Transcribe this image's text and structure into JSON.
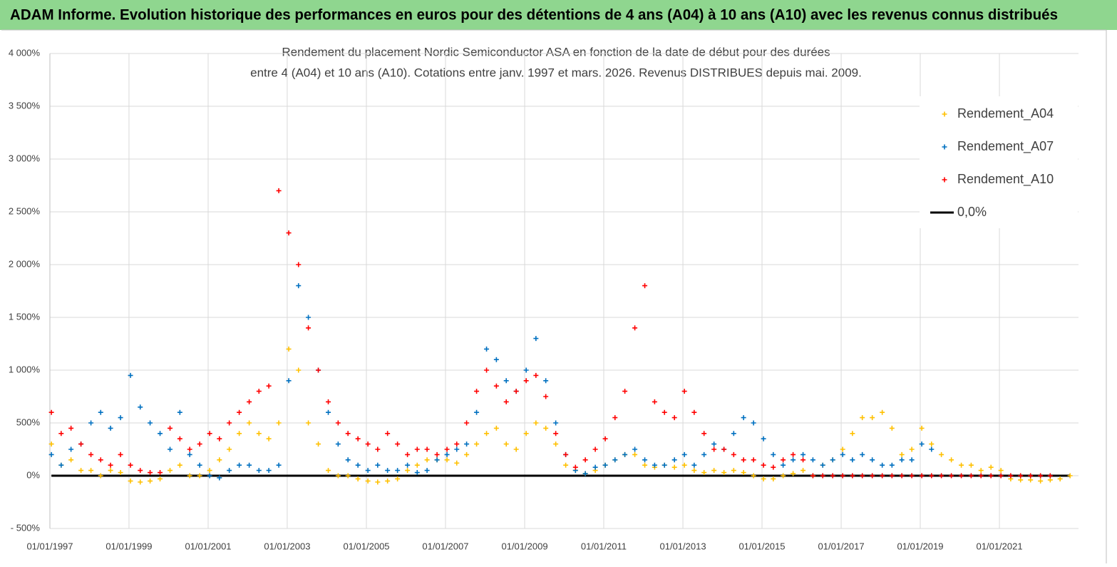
{
  "header": {
    "title": "ADAM Informe. Evolution historique des performances en euros pour des détentions de 4 ans (A04) à 10 ans (A10) avec les revenus connus distribués"
  },
  "chart_data": {
    "type": "scatter",
    "title": [
      "Rendement du placement Nordic Semiconductor ASA en fonction de la date de début pour des durées",
      "entre 4 (A04) et 10 ans (A10). Cotations entre janv. 1997 et mars. 2026. Revenus DISTRIBUES depuis mai. 2009."
    ],
    "x": [
      "1997-01-15",
      "1997-04-15",
      "1997-07-15",
      "1997-10-15",
      "1998-01-15",
      "1998-04-15",
      "1998-07-15",
      "1998-10-15",
      "1999-01-15",
      "1999-04-15",
      "1999-07-15",
      "1999-10-15",
      "2000-01-15",
      "2000-04-15",
      "2000-07-15",
      "2000-10-15",
      "2001-01-15",
      "2001-04-15",
      "2001-07-15",
      "2001-10-15",
      "2002-01-15",
      "2002-04-15",
      "2002-07-15",
      "2002-10-15",
      "2003-01-15",
      "2003-04-15",
      "2003-07-15",
      "2003-10-15",
      "2004-01-15",
      "2004-04-15",
      "2004-07-15",
      "2004-10-15",
      "2005-01-15",
      "2005-04-15",
      "2005-07-15",
      "2005-10-15",
      "2006-01-15",
      "2006-04-15",
      "2006-07-15",
      "2006-10-15",
      "2007-01-15",
      "2007-04-15",
      "2007-07-15",
      "2007-10-15",
      "2008-01-15",
      "2008-04-15",
      "2008-07-15",
      "2008-10-15",
      "2009-01-15",
      "2009-04-15",
      "2009-07-15",
      "2009-10-15",
      "2010-01-15",
      "2010-04-15",
      "2010-07-15",
      "2010-10-15",
      "2011-01-15",
      "2011-04-15",
      "2011-07-15",
      "2011-10-15",
      "2012-01-15",
      "2012-04-15",
      "2012-07-15",
      "2012-10-15",
      "2013-01-15",
      "2013-04-15",
      "2013-07-15",
      "2013-10-15",
      "2014-01-15",
      "2014-04-15",
      "2014-07-15",
      "2014-10-15",
      "2015-01-15",
      "2015-04-15",
      "2015-07-15",
      "2015-10-15",
      "2016-01-15",
      "2016-04-15",
      "2016-07-15",
      "2016-10-15",
      "2017-01-15",
      "2017-04-15",
      "2017-07-15",
      "2017-10-15",
      "2018-01-15",
      "2018-04-15",
      "2018-07-15",
      "2018-10-15",
      "2019-01-15",
      "2019-04-15",
      "2019-07-15",
      "2019-10-15",
      "2020-01-15",
      "2020-04-15",
      "2020-07-15",
      "2020-10-15",
      "2021-01-15",
      "2021-04-15",
      "2021-07-15",
      "2021-10-15",
      "2022-01-15",
      "2022-04-15",
      "2022-07-15",
      "2022-10-15"
    ],
    "series": [
      {
        "name": "Rendement_A04",
        "color": "#ffc000",
        "style": "marker",
        "values": [
          300,
          100,
          150,
          50,
          50,
          0,
          50,
          30,
          -50,
          -60,
          -50,
          -30,
          50,
          100,
          0,
          0,
          50,
          150,
          250,
          400,
          500,
          400,
          350,
          500,
          1200,
          1000,
          500,
          300,
          50,
          0,
          0,
          -30,
          -50,
          -60,
          -50,
          -30,
          50,
          100,
          150,
          150,
          150,
          120,
          200,
          300,
          400,
          450,
          300,
          250,
          400,
          500,
          450,
          300,
          100,
          50,
          20,
          50,
          100,
          150,
          200,
          200,
          100,
          80,
          100,
          80,
          100,
          50,
          30,
          50,
          30,
          50,
          30,
          0,
          -30,
          -30,
          0,
          20,
          50,
          0,
          100,
          150,
          250,
          400,
          550,
          550,
          600,
          450,
          200,
          250,
          450,
          300,
          200,
          150,
          100,
          100,
          50,
          80,
          50,
          -30,
          -40,
          -40,
          -50,
          -40,
          -30,
          0
        ]
      },
      {
        "name": "Rendement_A07",
        "color": "#0070c0",
        "style": "marker",
        "values": [
          200,
          100,
          250,
          300,
          500,
          600,
          450,
          550,
          950,
          650,
          500,
          400,
          250,
          600,
          200,
          100,
          0,
          -20,
          50,
          100,
          100,
          50,
          50,
          100,
          900,
          1800,
          1500,
          1000,
          600,
          300,
          150,
          100,
          50,
          100,
          50,
          50,
          100,
          30,
          50,
          150,
          200,
          250,
          300,
          600,
          1200,
          1100,
          900,
          800,
          1000,
          1300,
          900,
          500,
          200,
          50,
          20,
          80,
          100,
          150,
          200,
          250,
          150,
          100,
          100,
          150,
          200,
          100,
          200,
          300,
          250,
          400,
          550,
          500,
          350,
          200,
          100,
          150,
          200,
          150,
          100,
          150,
          200,
          150,
          200,
          150,
          100,
          100,
          150,
          150,
          300,
          250,
          null,
          null,
          null,
          null,
          null,
          null,
          null,
          null,
          null,
          null,
          null,
          null,
          null,
          null
        ]
      },
      {
        "name": "Rendement_A10",
        "color": "#ff0000",
        "style": "marker",
        "values": [
          600,
          400,
          450,
          300,
          200,
          150,
          100,
          200,
          100,
          50,
          30,
          30,
          450,
          350,
          250,
          300,
          400,
          350,
          500,
          600,
          700,
          800,
          850,
          2700,
          2300,
          2000,
          1400,
          1000,
          700,
          500,
          400,
          350,
          300,
          250,
          400,
          300,
          200,
          250,
          250,
          200,
          250,
          300,
          500,
          800,
          1000,
          850,
          700,
          800,
          900,
          950,
          750,
          400,
          200,
          80,
          150,
          250,
          350,
          550,
          800,
          1400,
          1800,
          700,
          600,
          550,
          800,
          600,
          400,
          250,
          250,
          200,
          150,
          150,
          100,
          80,
          150,
          200,
          150,
          0,
          0,
          0,
          0,
          0,
          0,
          0,
          0,
          0,
          0,
          0,
          0,
          0,
          0,
          0,
          0,
          0,
          0,
          0,
          0,
          0,
          0,
          0,
          0,
          0
        ]
      },
      {
        "name": "0,0%",
        "color": "#000000",
        "style": "line",
        "values": [
          0,
          0,
          0,
          0,
          0,
          0,
          0,
          0,
          0,
          0,
          0,
          0,
          0,
          0,
          0,
          0,
          0,
          0,
          0,
          0,
          0,
          0,
          0,
          0,
          0,
          0,
          0,
          0,
          0,
          0,
          0,
          0,
          0,
          0,
          0,
          0,
          0,
          0,
          0,
          0,
          0,
          0,
          0,
          0,
          0,
          0,
          0,
          0,
          0,
          0,
          0,
          0,
          0,
          0,
          0,
          0,
          0,
          0,
          0,
          0,
          0,
          0,
          0,
          0,
          0,
          0,
          0,
          0,
          0,
          0,
          0,
          0,
          0,
          0,
          0,
          0,
          0,
          0,
          0,
          0,
          0,
          0,
          0,
          0,
          0,
          0,
          0,
          0,
          0,
          0,
          0,
          0,
          0,
          0,
          0,
          0,
          0,
          0,
          0,
          0,
          0,
          0,
          0,
          0
        ]
      }
    ],
    "xlim": [
      "1997-01-01",
      "2023-01-01"
    ],
    "xticks": [
      {
        "value": "1997-01-01",
        "label": "01/01/1997"
      },
      {
        "value": "1999-01-01",
        "label": "01/01/1999"
      },
      {
        "value": "2001-01-01",
        "label": "01/01/2001"
      },
      {
        "value": "2003-01-01",
        "label": "01/01/2003"
      },
      {
        "value": "2005-01-01",
        "label": "01/01/2005"
      },
      {
        "value": "2007-01-01",
        "label": "01/01/2007"
      },
      {
        "value": "2009-01-01",
        "label": "01/01/2009"
      },
      {
        "value": "2011-01-01",
        "label": "01/01/2011"
      },
      {
        "value": "2013-01-01",
        "label": "01/01/2013"
      },
      {
        "value": "2015-01-01",
        "label": "01/01/2015"
      },
      {
        "value": "2017-01-01",
        "label": "01/01/2017"
      },
      {
        "value": "2019-01-01",
        "label": "01/01/2019"
      },
      {
        "value": "2021-01-01",
        "label": "01/01/2021"
      }
    ],
    "ylim": [
      -500,
      4000
    ],
    "yticks": [
      {
        "value": -500,
        "label": "- 500%"
      },
      {
        "value": 0,
        "label": "0%"
      },
      {
        "value": 500,
        "label": "500%"
      },
      {
        "value": 1000,
        "label": "1 000%"
      },
      {
        "value": 1500,
        "label": "1 500%"
      },
      {
        "value": 2000,
        "label": "2 000%"
      },
      {
        "value": 2500,
        "label": "2 500%"
      },
      {
        "value": 3000,
        "label": "3 000%"
      },
      {
        "value": 3500,
        "label": "3 500%"
      },
      {
        "value": 4000,
        "label": "4 000%"
      }
    ],
    "grid": true,
    "legend": "top-right"
  }
}
